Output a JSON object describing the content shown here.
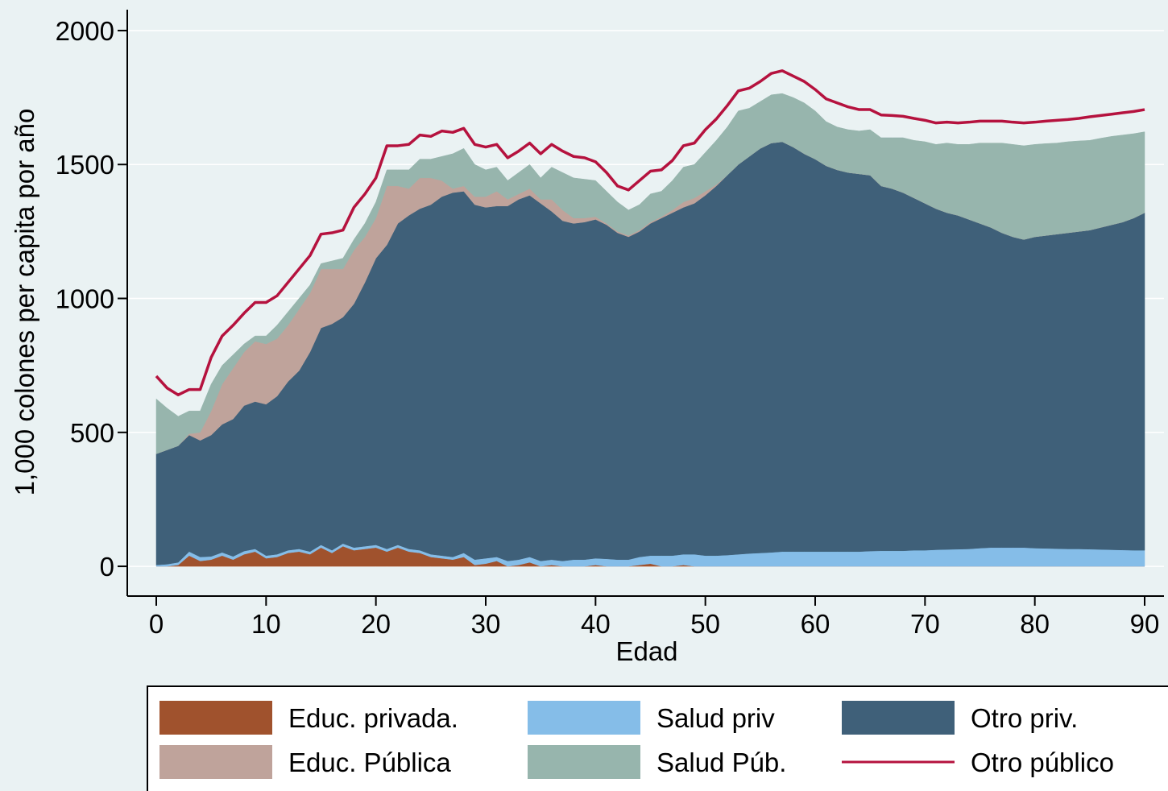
{
  "chart_data": {
    "type": "stacked-area",
    "x_label": "Edad",
    "y_label": "1,000 colones per capita por año",
    "x": [
      0,
      1,
      2,
      3,
      4,
      5,
      6,
      7,
      8,
      9,
      10,
      11,
      12,
      13,
      14,
      15,
      16,
      17,
      18,
      19,
      20,
      21,
      22,
      23,
      24,
      25,
      26,
      27,
      28,
      29,
      30,
      31,
      32,
      33,
      34,
      35,
      36,
      37,
      38,
      39,
      40,
      41,
      42,
      43,
      44,
      45,
      46,
      47,
      48,
      49,
      50,
      51,
      52,
      53,
      54,
      55,
      56,
      57,
      58,
      59,
      60,
      61,
      62,
      63,
      64,
      65,
      66,
      67,
      68,
      69,
      70,
      71,
      72,
      73,
      74,
      75,
      76,
      77,
      78,
      79,
      80,
      81,
      82,
      83,
      84,
      85,
      86,
      87,
      88,
      89,
      90
    ],
    "xlim": [
      -2.64,
      91.76
    ],
    "xticks": [
      0,
      10,
      20,
      30,
      40,
      50,
      60,
      70,
      80,
      90
    ],
    "ylim": [
      -111,
      2078
    ],
    "yticks": [
      0,
      500,
      1000,
      1500,
      2000
    ],
    "grid": true,
    "series": [
      {
        "name": "Educ. privada.",
        "color": "#a0522d",
        "kind": "area",
        "values": [
          0,
          0,
          5,
          40,
          20,
          25,
          40,
          25,
          45,
          55,
          30,
          35,
          50,
          55,
          45,
          70,
          50,
          75,
          60,
          65,
          70,
          55,
          70,
          55,
          50,
          35,
          30,
          25,
          35,
          5,
          10,
          20,
          0,
          5,
          15,
          0,
          5,
          0,
          0,
          0,
          5,
          0,
          0,
          0,
          5,
          10,
          0,
          0,
          5,
          0,
          0,
          0,
          0,
          0,
          0,
          0,
          0,
          0,
          0,
          0,
          0,
          0,
          0,
          0,
          0,
          0,
          0,
          0,
          0,
          0,
          0,
          0,
          0,
          0,
          0,
          0,
          0,
          0,
          0,
          0,
          0,
          0,
          0,
          0,
          0,
          0,
          0,
          0,
          0,
          0,
          0
        ]
      },
      {
        "name": "Salud priv",
        "color": "#85bde8",
        "kind": "area",
        "values": [
          5,
          8,
          10,
          15,
          15,
          12,
          12,
          12,
          12,
          10,
          10,
          10,
          10,
          10,
          10,
          10,
          10,
          10,
          10,
          10,
          10,
          10,
          10,
          10,
          10,
          10,
          10,
          10,
          15,
          20,
          20,
          15,
          20,
          20,
          20,
          20,
          20,
          20,
          25,
          25,
          25,
          28,
          25,
          25,
          30,
          30,
          40,
          40,
          40,
          45,
          40,
          40,
          42,
          45,
          48,
          50,
          52,
          55,
          55,
          55,
          55,
          55,
          55,
          55,
          55,
          57,
          58,
          58,
          58,
          60,
          60,
          62,
          63,
          64,
          65,
          68,
          70,
          70,
          70,
          70,
          68,
          67,
          66,
          65,
          65,
          64,
          63,
          62,
          61,
          60,
          60
        ]
      },
      {
        "name": "Otro priv.",
        "color": "#3f6079",
        "kind": "area",
        "values": [
          415,
          427,
          435,
          435,
          435,
          453,
          478,
          513,
          543,
          550,
          565,
          590,
          630,
          665,
          745,
          810,
          845,
          845,
          910,
          985,
          1070,
          1135,
          1200,
          1245,
          1275,
          1305,
          1340,
          1360,
          1350,
          1325,
          1310,
          1310,
          1325,
          1345,
          1350,
          1335,
          1300,
          1270,
          1255,
          1260,
          1265,
          1247,
          1220,
          1205,
          1215,
          1240,
          1260,
          1280,
          1295,
          1310,
          1345,
          1380,
          1418,
          1455,
          1482,
          1510,
          1528,
          1530,
          1510,
          1485,
          1465,
          1440,
          1425,
          1415,
          1410,
          1403,
          1362,
          1352,
          1337,
          1315,
          1295,
          1273,
          1257,
          1246,
          1230,
          1212,
          1195,
          1175,
          1160,
          1150,
          1162,
          1168,
          1174,
          1180,
          1185,
          1191,
          1202,
          1213,
          1224,
          1240,
          1260
        ]
      },
      {
        "name": "Educ. Pública",
        "color": "#bfa39b",
        "kind": "area",
        "values": [
          0,
          0,
          0,
          5,
          30,
          90,
          150,
          190,
          200,
          225,
          225,
          215,
          210,
          230,
          220,
          220,
          205,
          180,
          200,
          170,
          150,
          220,
          140,
          100,
          115,
          100,
          60,
          15,
          20,
          30,
          40,
          55,
          25,
          20,
          25,
          15,
          45,
          40,
          20,
          15,
          10,
          5,
          5,
          5,
          5,
          5,
          5,
          10,
          20,
          20,
          15,
          5,
          0,
          0,
          0,
          0,
          0,
          0,
          0,
          0,
          0,
          0,
          0,
          0,
          0,
          0,
          0,
          0,
          0,
          0,
          0,
          0,
          0,
          0,
          0,
          0,
          0,
          0,
          0,
          0,
          0,
          0,
          0,
          0,
          0,
          0,
          0,
          0,
          0,
          0,
          0
        ]
      },
      {
        "name": "Salud Púb.",
        "color": "#97b5ad",
        "kind": "area",
        "values": [
          205,
          155,
          110,
          85,
          80,
          100,
          70,
          50,
          30,
          20,
          30,
          50,
          50,
          40,
          30,
          20,
          30,
          40,
          40,
          50,
          60,
          60,
          60,
          70,
          70,
          70,
          90,
          130,
          140,
          120,
          100,
          90,
          70,
          80,
          90,
          80,
          120,
          140,
          150,
          145,
          135,
          120,
          110,
          95,
          95,
          105,
          95,
          110,
          130,
          125,
          145,
          165,
          180,
          200,
          180,
          175,
          180,
          180,
          185,
          190,
          180,
          165,
          160,
          160,
          160,
          170,
          180,
          190,
          205,
          215,
          230,
          240,
          260,
          265,
          280,
          300,
          315,
          335,
          345,
          350,
          345,
          343,
          340,
          340,
          338,
          335,
          333,
          330,
          325,
          315,
          302
        ]
      },
      {
        "name": "Otro público",
        "color": "#b5123e",
        "kind": "line",
        "values": [
          85,
          75,
          80,
          80,
          80,
          100,
          110,
          110,
          115,
          125,
          125,
          110,
          110,
          110,
          110,
          110,
          105,
          105,
          120,
          110,
          90,
          90,
          90,
          95,
          90,
          85,
          95,
          80,
          75,
          75,
          85,
          85,
          85,
          80,
          80,
          90,
          85,
          80,
          80,
          80,
          70,
          70,
          60,
          75,
          90,
          85,
          80,
          75,
          80,
          80,
          85,
          80,
          80,
          75,
          75,
          75,
          80,
          85,
          80,
          80,
          80,
          85,
          90,
          85,
          80,
          75,
          85,
          83,
          80,
          82,
          80,
          80,
          78,
          80,
          83,
          82,
          82,
          82,
          83,
          85,
          83,
          84,
          85,
          83,
          84,
          88,
          85,
          83,
          83,
          83,
          83
        ]
      }
    ]
  }
}
